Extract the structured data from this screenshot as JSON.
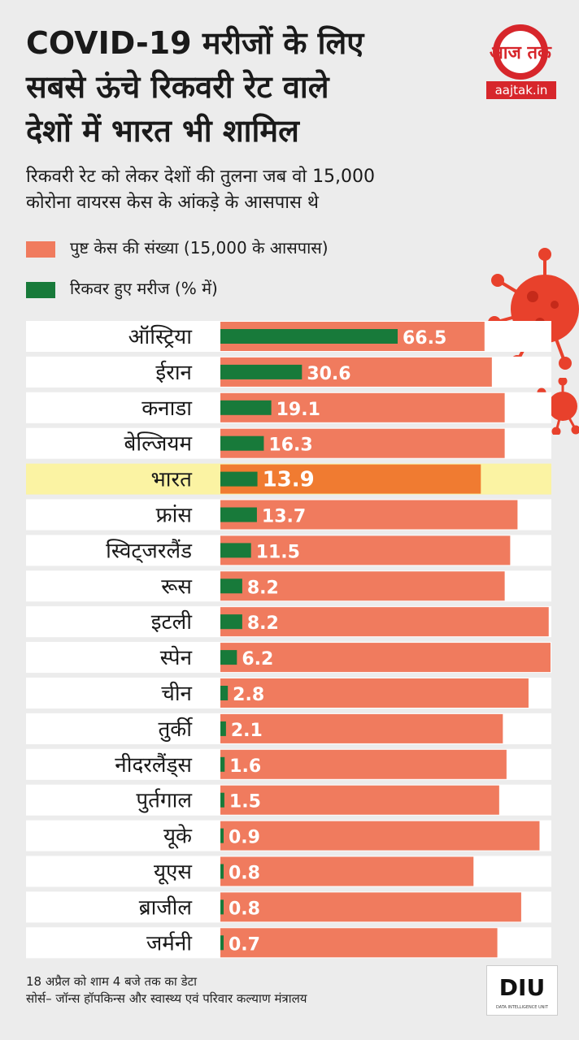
{
  "header": {
    "title_lines": [
      "COVID-19 मरीजों के लिए",
      "सबसे ऊंचे रिकवरी रेट वाले",
      "देशों में भारत भी शामिल"
    ],
    "subtitle_lines": [
      "रिकवरी रेट को लेकर देशों की तुलना जब वो 15,000",
      "कोरोना वायरस केस के आंकड़े के आसपास थे"
    ]
  },
  "logo": {
    "text": "आज तक",
    "site": "aajtak.in",
    "icon": "aajtak-logo"
  },
  "legend": {
    "cases": "पुष्ट केस की संख्या (15,000 के आसपास)",
    "recovered": "रिकवर हुए मरीज (% में)"
  },
  "colors": {
    "cases": "#f07b5e",
    "recovered": "#187a3a",
    "highlight_row": "#fbf3a3",
    "highlight_bar": "#f07b31",
    "row_bg": "#ffffff",
    "brand_red": "#d7262b"
  },
  "chart_data": {
    "type": "bar",
    "title": "COVID-19 मरीजों के लिए सबसे ऊंचे रिकवरी रेट वाले देशों में भारत भी शामिल",
    "orientation": "horizontal",
    "highlight": "भारत",
    "categories": [
      "ऑस्ट्रिया",
      "ईरान",
      "कनाडा",
      "बेल्जियम",
      "भारत",
      "फ्रांस",
      "स्विट्जरलैंड",
      "रूस",
      "इटली",
      "स्पेन",
      "चीन",
      "तुर्की",
      "नीदरलैंड्स",
      "पुर्तगाल",
      "यूके",
      "यूएस",
      "ब्राजील",
      "जर्मनी"
    ],
    "series": [
      {
        "name": "पुष्ट केस की संख्या (15,000 के आसपास)",
        "values": [
          14400,
          14800,
          15500,
          15500,
          14200,
          16200,
          15800,
          15500,
          17900,
          18000,
          16800,
          15400,
          15600,
          15200,
          17400,
          13800,
          16400,
          15100
        ]
      },
      {
        "name": "रिकवर हुए मरीज (% में)",
        "values": [
          66.5,
          30.6,
          19.1,
          16.3,
          13.9,
          13.7,
          11.5,
          8.2,
          8.2,
          6.2,
          2.8,
          2.1,
          1.6,
          1.5,
          0.9,
          0.8,
          0.8,
          0.7
        ]
      }
    ],
    "value_labels": [
      "66.5",
      "30.6",
      "19.1",
      "16.3",
      "13.9",
      "13.7",
      "11.5",
      "8.2",
      "8.2",
      "6.2",
      "2.8",
      "2.1",
      "1.6",
      "1.5",
      "0.9",
      "0.8",
      "0.8",
      "0.7"
    ],
    "xlim": [
      0,
      18000
    ],
    "recovered_scale": [
      0,
      100
    ]
  },
  "footer": {
    "line1": "18 अप्रैल को शाम 4 बजे तक का डेटा",
    "line2": "सोर्स– जॉन्स हॉपकिन्स और स्वास्थ्य एवं परिवार कल्याण मंत्रालय",
    "diu": "DIU",
    "diu_sub": "DATA INTELLIGENCE UNIT"
  }
}
